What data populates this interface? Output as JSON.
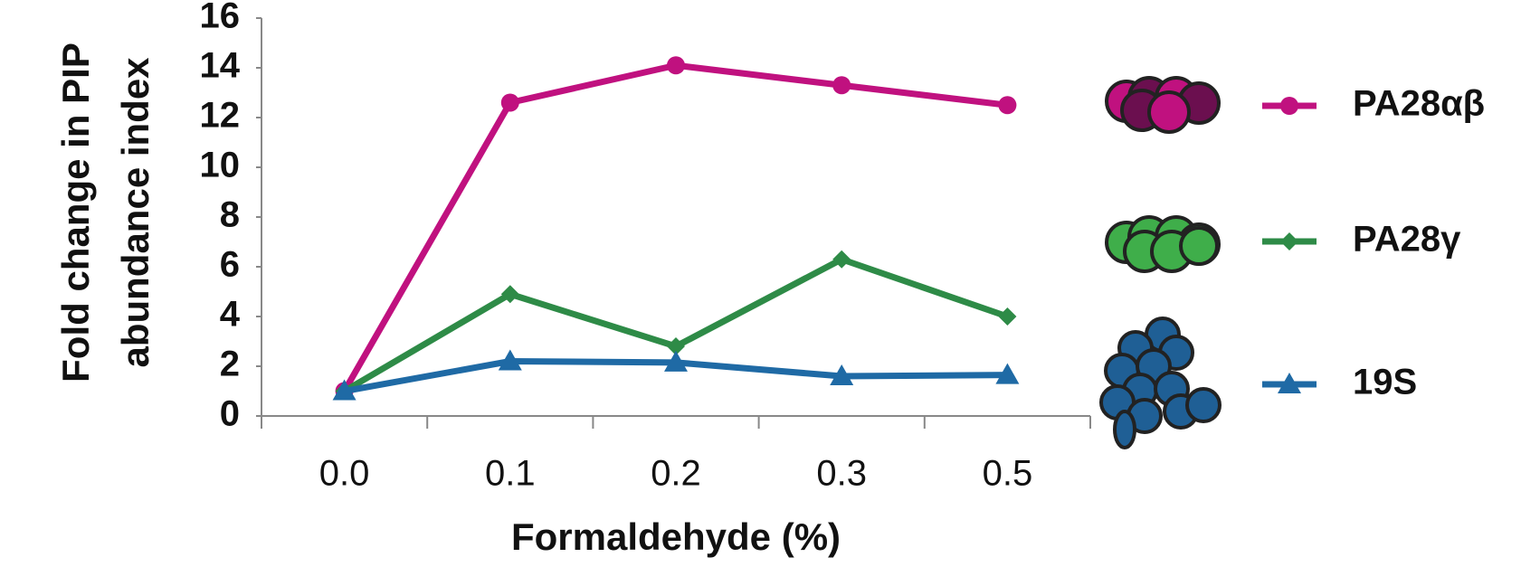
{
  "chart_data": {
    "type": "line",
    "ylabel": [
      "Fold change in PIP",
      "abundance index"
    ],
    "xlabel": "Formaldehyde (%)",
    "categories": [
      "0.0",
      "0.1",
      "0.2",
      "0.3",
      "0.5"
    ],
    "series": [
      {
        "name": "PA28αβ",
        "color": "#c0117f",
        "marker": "circle",
        "values": [
          1,
          12.6,
          14.1,
          13.3,
          12.5
        ]
      },
      {
        "name": "PA28γ",
        "color": "#2e8b47",
        "marker": "diamond",
        "values": [
          1,
          4.9,
          2.8,
          6.3,
          4.0
        ]
      },
      {
        "name": "19S",
        "color": "#1f6aa5",
        "marker": "triangle",
        "values": [
          1,
          2.2,
          2.15,
          1.6,
          1.65
        ]
      }
    ],
    "ylim": [
      0,
      16
    ],
    "yticks": [
      0,
      2,
      4,
      6,
      8,
      10,
      12,
      14,
      16
    ]
  }
}
